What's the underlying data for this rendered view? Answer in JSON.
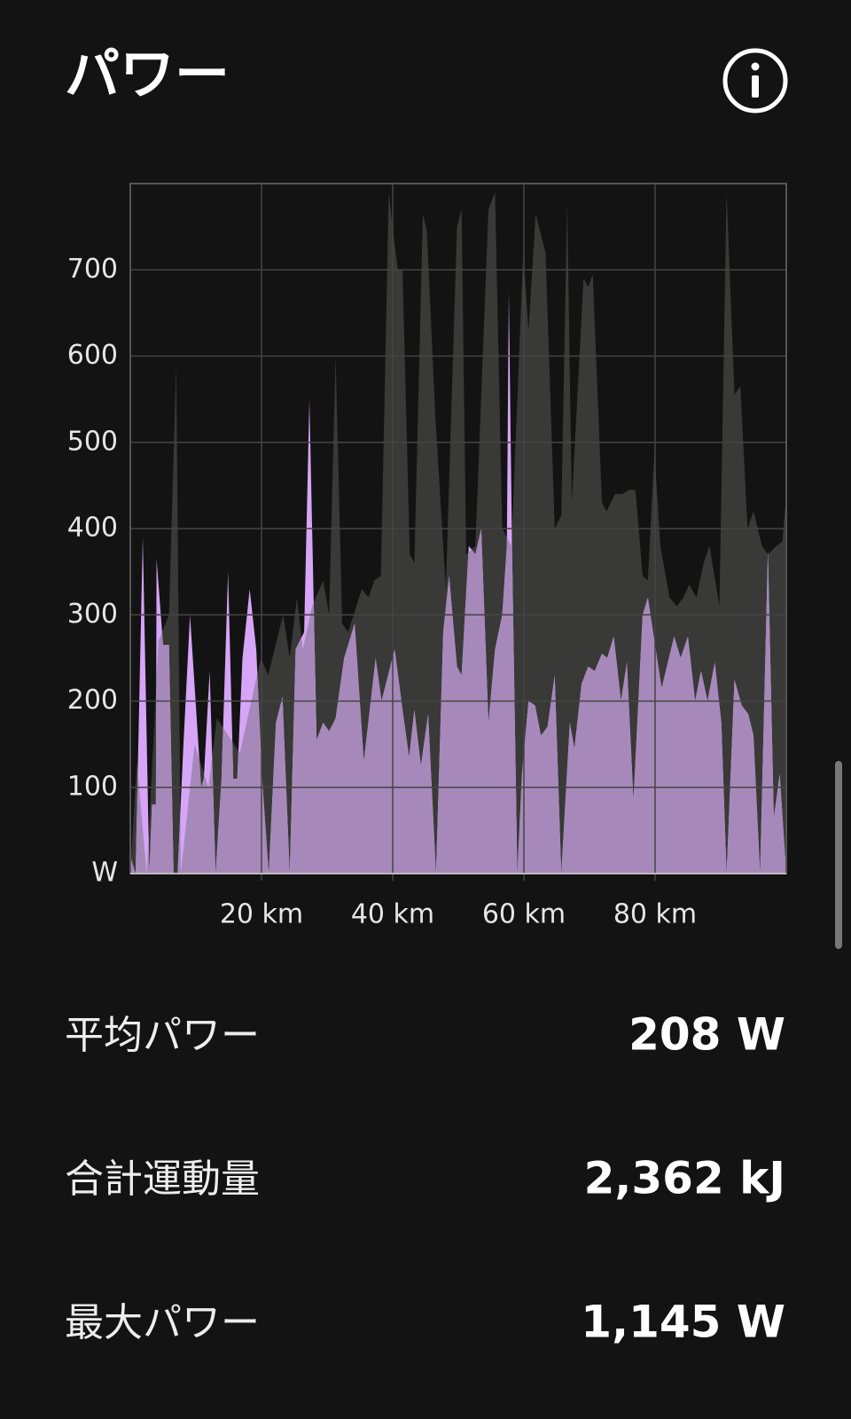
{
  "header": {
    "title": "パワー"
  },
  "chart_data": {
    "type": "area",
    "series": [
      {
        "color": "#393937",
        "x": [
          0,
          1.0,
          2.5,
          4.3,
          5.9,
          7.0,
          7.7,
          9.8,
          11.9,
          13.2,
          16.7,
          19.9,
          21.0,
          23.3,
          24.3,
          25.4,
          26.3,
          27.7,
          29.4,
          30.3,
          31.3,
          32.3,
          33.2,
          35.3,
          36.3,
          37.2,
          38.2,
          39.4,
          40.1,
          40.8,
          41.5,
          42.6,
          43.3,
          44.6,
          45.2,
          46.5,
          48.1,
          49.8,
          50.5,
          51.2,
          52.6,
          54.6,
          55.6,
          56.7,
          58.1,
          59.9,
          60.7,
          61.8,
          63.3,
          64.7,
          65.7,
          66.6,
          67.3,
          69.1,
          69.8,
          70.5,
          71.9,
          72.6,
          73.9,
          75.0,
          76.0,
          77.0,
          78.1,
          78.9,
          79.9,
          80.8,
          82.2,
          83.3,
          84.3,
          85.2,
          86.3,
          87.4,
          88.3,
          89.8,
          90.9,
          92.1,
          93.0,
          94.1,
          95.0,
          96.3,
          97.2,
          98.5,
          99.4,
          100
        ],
        "values": [
          0,
          130,
          0,
          270,
          300,
          590,
          0,
          150,
          100,
          180,
          140,
          250,
          230,
          300,
          250,
          320,
          260,
          310,
          340,
          300,
          600,
          290,
          280,
          330,
          320,
          340,
          345,
          790,
          740,
          700,
          700,
          370,
          360,
          765,
          745,
          530,
          330,
          750,
          770,
          370,
          380,
          770,
          790,
          400,
          380,
          720,
          630,
          765,
          720,
          400,
          415,
          780,
          430,
          690,
          680,
          695,
          430,
          420,
          440,
          440,
          445,
          445,
          345,
          340,
          490,
          380,
          320,
          310,
          320,
          335,
          320,
          360,
          380,
          310,
          790,
          555,
          565,
          400,
          420,
          380,
          370,
          380,
          385,
          440
        ]
      },
      {
        "color": "#d6a5f7",
        "x": [
          0,
          0.8,
          1.9,
          2.9,
          3.3,
          3.9,
          4.0,
          5.0,
          5.9,
          6.6,
          7.2,
          8.1,
          9.1,
          10.8,
          11.2,
          12.1,
          13.0,
          13.9,
          14.9,
          15.7,
          16.3,
          17.1,
          18.2,
          19.2,
          20.1,
          21.1,
          22.2,
          23.2,
          24.3,
          25.2,
          26.5,
          27.3,
          28.4,
          29.4,
          30.3,
          31.3,
          32.6,
          34.2,
          35.6,
          37.4,
          38.3,
          40.3,
          41.5,
          42.5,
          43.3,
          44.3,
          45.4,
          46.6,
          47.7,
          48.6,
          49.8,
          50.5,
          51.6,
          52.6,
          53.5,
          54.6,
          55.6,
          56.7,
          57.4,
          57.7,
          58.2,
          59.0,
          59.7,
          60.7,
          61.7,
          62.6,
          63.6,
          64.7,
          65.7,
          67.0,
          67.7,
          68.8,
          69.8,
          70.8,
          71.9,
          72.7,
          73.7,
          74.8,
          75.7,
          76.7,
          78.1,
          78.9,
          79.7,
          81.0,
          82.9,
          83.9,
          85.0,
          86.1,
          87.0,
          88.0,
          89.1,
          90.1,
          90.9,
          92.1,
          93.2,
          94.2,
          95.0,
          96.0,
          97.2,
          98.1,
          99.0,
          100
        ],
        "values": [
          20,
          0,
          390,
          0,
          80,
          80,
          365,
          265,
          265,
          0,
          0,
          150,
          300,
          100,
          110,
          235,
          0,
          110,
          350,
          110,
          110,
          250,
          330,
          260,
          110,
          0,
          175,
          205,
          0,
          260,
          280,
          550,
          155,
          175,
          165,
          180,
          250,
          290,
          130,
          250,
          200,
          260,
          190,
          135,
          190,
          125,
          185,
          0,
          280,
          345,
          240,
          230,
          380,
          370,
          400,
          175,
          260,
          300,
          380,
          675,
          375,
          0,
          115,
          200,
          195,
          160,
          170,
          230,
          0,
          175,
          145,
          220,
          240,
          235,
          255,
          250,
          275,
          200,
          245,
          85,
          300,
          320,
          280,
          215,
          275,
          250,
          275,
          200,
          235,
          200,
          245,
          175,
          0,
          225,
          195,
          185,
          160,
          0,
          375,
          65,
          115,
          0
        ]
      }
    ],
    "xlim": [
      0,
      100
    ],
    "xticks": [
      {
        "value": 20,
        "label": "20 km"
      },
      {
        "value": 40,
        "label": "40 km"
      },
      {
        "value": 60,
        "label": "60 km"
      },
      {
        "value": 80,
        "label": "80 km"
      }
    ],
    "ylim": [
      0,
      800
    ],
    "yticks": [
      {
        "value": 0,
        "label": "W"
      },
      100,
      200,
      300,
      400,
      500,
      600,
      700
    ],
    "grid": true
  },
  "stats": [
    {
      "label": "平均パワー",
      "value": "208 W"
    },
    {
      "label": "合計運動量",
      "value": "2,362 kJ"
    },
    {
      "label": "最大パワー",
      "value": "1,145 W"
    }
  ]
}
